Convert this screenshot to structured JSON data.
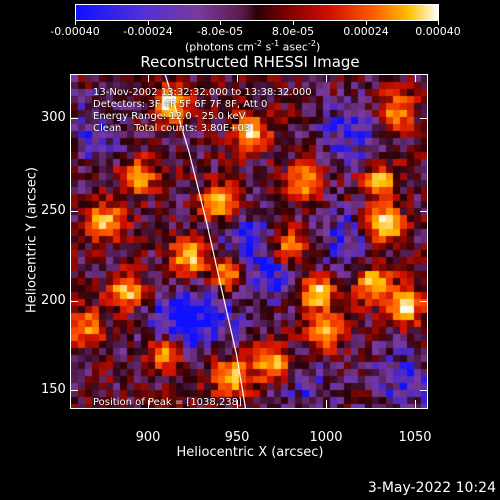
{
  "colorbar": {
    "labels": [
      "-0.00040",
      "-0.00024",
      "-8.0e-05",
      "8.0e-05",
      "0.00024",
      "0.00040"
    ],
    "units_text": "(photons cm",
    "units_exp1": "-2",
    "units_mid": " s",
    "units_exp2": "-1",
    "units_mid2": " asec",
    "units_exp3": "-2",
    "units_end": ")"
  },
  "title": "Reconstructed RHESSI Image",
  "info_lines": [
    "13-Nov-2002 13:32:32.000 to 13:38:32.000",
    "Detectors: 3F 4F 5F 6F 7F 8F, Att 0",
    "Energy Range: 12.0 - 25.0 keV",
    "Clean    Total counts: 3.80E+03"
  ],
  "peak_text": "Position of Peak = [1038,238]",
  "x_ticks": [
    "900",
    "950",
    "1000",
    "1050"
  ],
  "y_ticks": [
    "150",
    "200",
    "250",
    "300"
  ],
  "xlabel": "Heliocentric X (arcsec)",
  "ylabel": "Heliocentric Y (arcsec)",
  "datestamp": "3-May-2022 10:24",
  "chart_data": {
    "type": "heatmap",
    "title": "Reconstructed RHESSI Image",
    "xlabel": "Heliocentric X (arcsec)",
    "ylabel": "Heliocentric Y (arcsec)",
    "xlim": [
      862,
      1062
    ],
    "ylim": [
      135,
      322
    ],
    "colorbar_range": [
      -0.0004,
      0.0004
    ],
    "colormap": [
      "#1010ff",
      "#7a3a9c",
      "#2a0006",
      "#d01000",
      "#ff5a00",
      "#ffc000",
      "#ffffff"
    ],
    "peak": [
      1038,
      238
    ],
    "hot_regions": [
      {
        "x": 1038,
        "y": 238,
        "level": 1.0
      },
      {
        "x": 1035,
        "y": 262,
        "level": 0.7
      },
      {
        "x": 1032,
        "y": 205,
        "level": 0.8
      },
      {
        "x": 1050,
        "y": 192,
        "level": 0.8
      },
      {
        "x": 1000,
        "y": 200,
        "level": 0.85
      },
      {
        "x": 1005,
        "y": 178,
        "level": 0.7
      },
      {
        "x": 975,
        "y": 160,
        "level": 0.75
      },
      {
        "x": 985,
        "y": 225,
        "level": 0.7
      },
      {
        "x": 993,
        "y": 262,
        "level": 0.7
      },
      {
        "x": 963,
        "y": 290,
        "level": 0.75
      },
      {
        "x": 945,
        "y": 250,
        "level": 0.7
      },
      {
        "x": 950,
        "y": 210,
        "level": 0.75
      },
      {
        "x": 952,
        "y": 152,
        "level": 0.8
      },
      {
        "x": 928,
        "y": 220,
        "level": 0.8
      },
      {
        "x": 918,
        "y": 305,
        "level": 0.85
      },
      {
        "x": 900,
        "y": 265,
        "level": 0.65
      },
      {
        "x": 882,
        "y": 240,
        "level": 0.75
      },
      {
        "x": 893,
        "y": 200,
        "level": 0.7
      },
      {
        "x": 915,
        "y": 165,
        "level": 0.75
      },
      {
        "x": 870,
        "y": 180,
        "level": 0.6
      },
      {
        "x": 1045,
        "y": 302,
        "level": 0.65
      }
    ],
    "cold_regions": [
      {
        "x": 920,
        "y": 180,
        "level": 1.0
      },
      {
        "x": 940,
        "y": 190,
        "level": 0.9
      },
      {
        "x": 975,
        "y": 210,
        "level": 0.8
      },
      {
        "x": 1015,
        "y": 230,
        "level": 0.8
      },
      {
        "x": 1020,
        "y": 290,
        "level": 0.9
      },
      {
        "x": 960,
        "y": 230,
        "level": 0.7
      },
      {
        "x": 875,
        "y": 290,
        "level": 0.7
      },
      {
        "x": 1050,
        "y": 150,
        "level": 0.8
      },
      {
        "x": 995,
        "y": 145,
        "level": 0.6
      }
    ],
    "limb_curve": [
      [
        915,
        322
      ],
      [
        928,
        280
      ],
      [
        938,
        240
      ],
      [
        947,
        200
      ],
      [
        955,
        165
      ],
      [
        960,
        135
      ]
    ]
  }
}
